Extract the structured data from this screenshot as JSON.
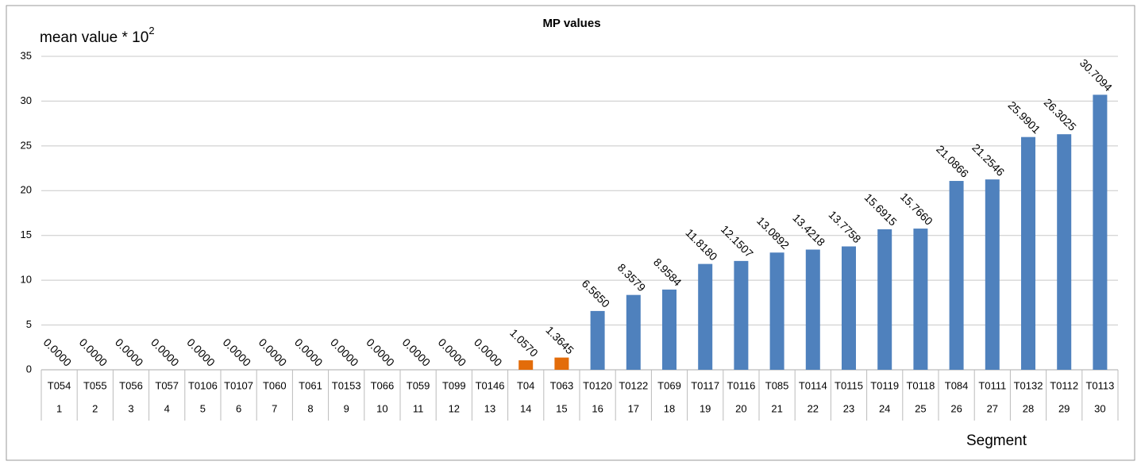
{
  "chart_data": {
    "type": "bar",
    "title": "MP values",
    "y_label": {
      "text": "mean value * 10",
      "superscript": "2"
    },
    "x_label": "Segment",
    "categories": [
      "T054",
      "T055",
      "T056",
      "T057",
      "T0106",
      "T0107",
      "T060",
      "T061",
      "T0153",
      "T066",
      "T059",
      "T099",
      "T0146",
      "T04",
      "T063",
      "T0120",
      "T0122",
      "T069",
      "T0117",
      "T0116",
      "T085",
      "T0114",
      "T0115",
      "T0119",
      "T0118",
      "T084",
      "T0111",
      "T0132",
      "T0112",
      "T0113"
    ],
    "category_numbers": [
      1,
      2,
      3,
      4,
      5,
      6,
      7,
      8,
      9,
      10,
      11,
      12,
      13,
      14,
      15,
      16,
      17,
      18,
      19,
      20,
      21,
      22,
      23,
      24,
      25,
      26,
      27,
      28,
      29,
      30
    ],
    "values": [
      0,
      0,
      0,
      0,
      0,
      0,
      0,
      0,
      0,
      0,
      0,
      0,
      0,
      1.057,
      1.3645,
      6.565,
      8.3579,
      8.9584,
      11.818,
      12.1507,
      13.0892,
      13.4218,
      13.7758,
      15.6915,
      15.766,
      21.0866,
      21.2546,
      25.9901,
      26.3025,
      30.7094
    ],
    "value_labels": [
      "0.0000",
      "0.0000",
      "0.0000",
      "0.0000",
      "0.0000",
      "0.0000",
      "0.0000",
      "0.0000",
      "0.0000",
      "0.0000",
      "0.0000",
      "0.0000",
      "0.0000",
      "1.0570",
      "1.3645",
      "6.5650",
      "8.3579",
      "8.9584",
      "11.8180",
      "12.1507",
      "13.0892",
      "13.4218",
      "13.7758",
      "15.6915",
      "15.7660",
      "21.0866",
      "21.2546",
      "25.9901",
      "26.3025",
      "30.7094"
    ],
    "colors": [
      "#4f81bd",
      "#4f81bd",
      "#4f81bd",
      "#4f81bd",
      "#4f81bd",
      "#4f81bd",
      "#4f81bd",
      "#4f81bd",
      "#4f81bd",
      "#4f81bd",
      "#4f81bd",
      "#4f81bd",
      "#4f81bd",
      "#e36c0a",
      "#e36c0a",
      "#4f81bd",
      "#4f81bd",
      "#4f81bd",
      "#4f81bd",
      "#4f81bd",
      "#4f81bd",
      "#4f81bd",
      "#4f81bd",
      "#4f81bd",
      "#4f81bd",
      "#4f81bd",
      "#4f81bd",
      "#4f81bd",
      "#4f81bd",
      "#4f81bd"
    ],
    "ylim": [
      0,
      35
    ],
    "yticks": [
      0,
      5,
      10,
      15,
      20,
      25,
      30,
      35
    ],
    "grid": true
  }
}
